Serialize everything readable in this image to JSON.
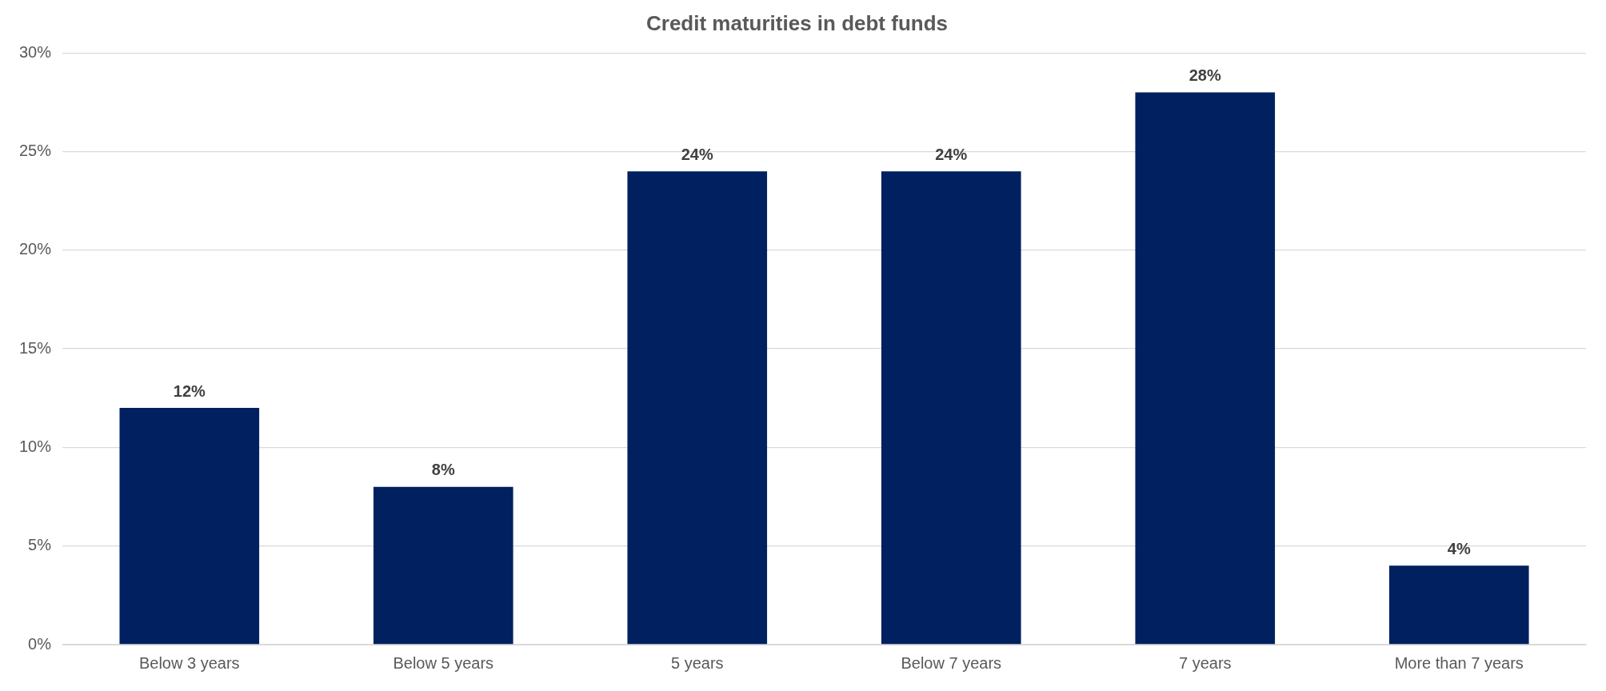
{
  "chart_data": {
    "type": "bar",
    "title": "Credit maturities in debt funds",
    "categories": [
      "Below 3 years",
      "Below 5 years",
      "5 years",
      "Below 7 years",
      "7 years",
      "More than 7 years"
    ],
    "values": [
      12,
      8,
      24,
      24,
      28,
      4
    ],
    "value_labels": [
      "12%",
      "8%",
      "24%",
      "24%",
      "28%",
      "4%"
    ],
    "color": "#002060",
    "ylim": [
      0,
      30
    ],
    "yticks": [
      {
        "value": 0,
        "label": "0%"
      },
      {
        "value": 5,
        "label": "5%"
      },
      {
        "value": 10,
        "label": "10%"
      },
      {
        "value": 15,
        "label": "15%"
      },
      {
        "value": 20,
        "label": "20%"
      },
      {
        "value": 25,
        "label": "25%"
      },
      {
        "value": 30,
        "label": "30%"
      }
    ],
    "grid": "y",
    "legend": false
  }
}
